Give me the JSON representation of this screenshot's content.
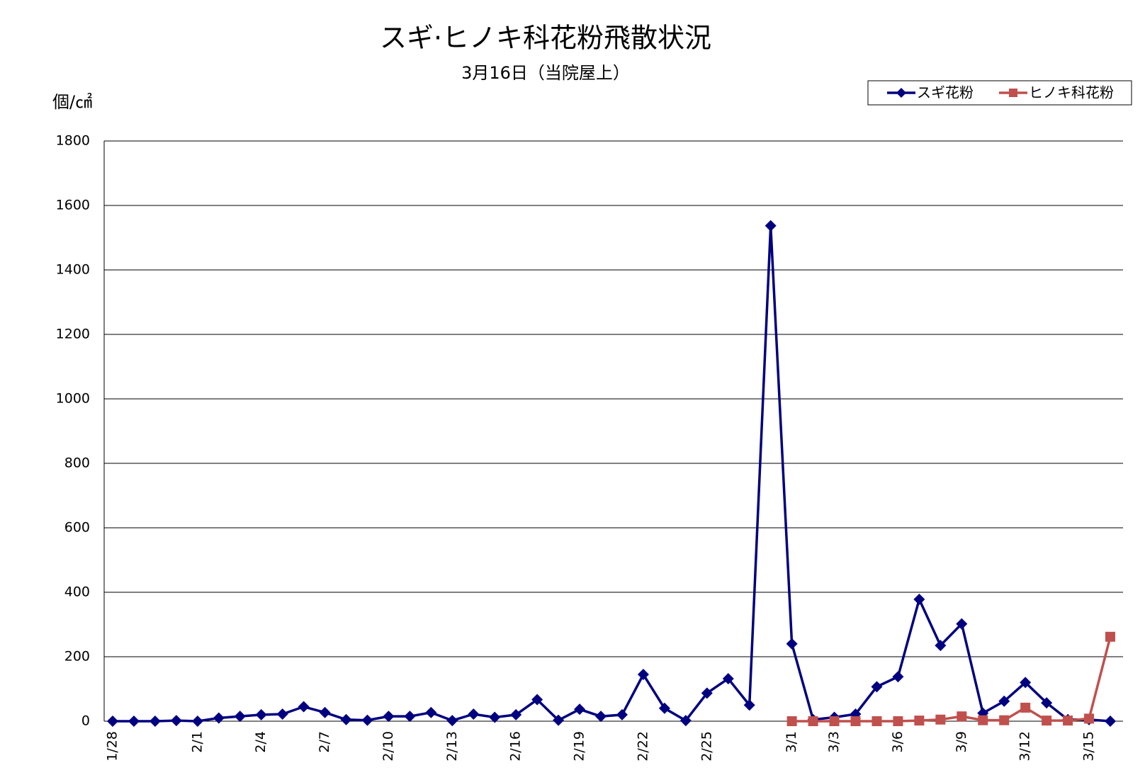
{
  "chart_data": {
    "type": "line",
    "title": "スギ·ヒノキ科花粉飛散状況",
    "subtitle": "3月16日（当院屋上）",
    "y_label": "個/㎠",
    "categories": [
      "1/28",
      null,
      null,
      null,
      "2/1",
      null,
      null,
      "2/4",
      null,
      null,
      "2/7",
      null,
      null,
      "2/10",
      null,
      null,
      "2/13",
      null,
      null,
      "2/16",
      null,
      null,
      "2/19",
      null,
      null,
      "2/22",
      null,
      null,
      "2/25",
      null,
      null,
      null,
      "3/1",
      null,
      "3/3",
      null,
      null,
      "3/6",
      null,
      null,
      "3/9",
      null,
      null,
      "3/12",
      null,
      null,
      "3/15",
      null
    ],
    "series": [
      {
        "name": "スギ花粉",
        "color": "#000080",
        "marker": "diamond",
        "values": [
          0,
          0,
          0,
          2,
          0,
          10,
          15,
          20,
          22,
          45,
          27,
          5,
          3,
          15,
          15,
          27,
          2,
          22,
          12,
          20,
          67,
          3,
          37,
          15,
          20,
          145,
          40,
          2,
          87,
          132,
          50,
          1537,
          240,
          5,
          12,
          22,
          107,
          138,
          378,
          235,
          302,
          25,
          62,
          120,
          57,
          5,
          5,
          0
        ]
      },
      {
        "name": "ヒノキ科花粉",
        "color": "#c0504d",
        "marker": "square",
        "values": [
          null,
          null,
          null,
          null,
          null,
          null,
          null,
          null,
          null,
          null,
          null,
          null,
          null,
          null,
          null,
          null,
          null,
          null,
          null,
          null,
          null,
          null,
          null,
          null,
          null,
          null,
          null,
          null,
          null,
          null,
          null,
          null,
          0,
          0,
          0,
          0,
          0,
          0,
          2,
          5,
          15,
          3,
          3,
          42,
          2,
          2,
          8,
          262
        ]
      }
    ],
    "ylim": [
      0,
      1800
    ],
    "yticks": [
      0,
      200,
      400,
      600,
      800,
      1000,
      1200,
      1400,
      1600,
      1800
    ],
    "grid": true,
    "legend": "top-right"
  }
}
